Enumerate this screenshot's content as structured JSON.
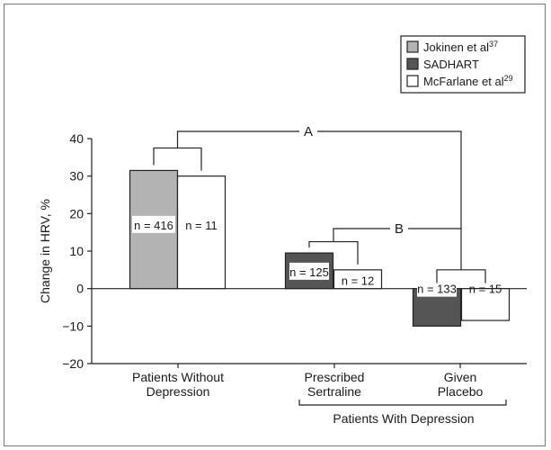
{
  "chart_data": {
    "type": "bar",
    "ylabel": "Change in HRV, %",
    "ylim": [
      -20,
      40
    ],
    "yticks": [
      -20,
      -10,
      0,
      10,
      20,
      30,
      40
    ],
    "ytick_labels": [
      "−20",
      "−10",
      "0",
      "10",
      "20",
      "30",
      "40"
    ],
    "grid": false,
    "legend_position": "top-right",
    "categories": [
      {
        "lines": [
          "Patients Without",
          "Depression"
        ]
      },
      {
        "lines": [
          "Prescribed",
          "Sertraline"
        ]
      },
      {
        "lines": [
          "Given",
          "Placebo"
        ]
      }
    ],
    "group_label": "Patients With Depression",
    "series": [
      {
        "label": "Jokinen et al",
        "sup": "37",
        "color": "#b3b3b3"
      },
      {
        "label": "SADHART",
        "sup": "",
        "color": "#555555"
      },
      {
        "label": "McFarlane et al",
        "sup": "29",
        "color": "#ffffff"
      }
    ],
    "bars": [
      {
        "category": 0,
        "series": 0,
        "value": 31.5,
        "n_label": "n = 416"
      },
      {
        "category": 0,
        "series": 2,
        "value": 30,
        "n_label": "n = 11"
      },
      {
        "category": 1,
        "series": 1,
        "value": 9.5,
        "n_label": "n = 125"
      },
      {
        "category": 1,
        "series": 2,
        "value": 5,
        "n_label": "n = 12"
      },
      {
        "category": 2,
        "series": 1,
        "value": -10,
        "n_label": "n = 133"
      },
      {
        "category": 2,
        "series": 2,
        "value": -8.5,
        "n_label": "n = 15"
      }
    ],
    "comparisons": [
      {
        "label": "A",
        "from_category": 0,
        "to_category": 2
      },
      {
        "label": "B",
        "from_category": 1,
        "to_category": 2
      }
    ]
  }
}
